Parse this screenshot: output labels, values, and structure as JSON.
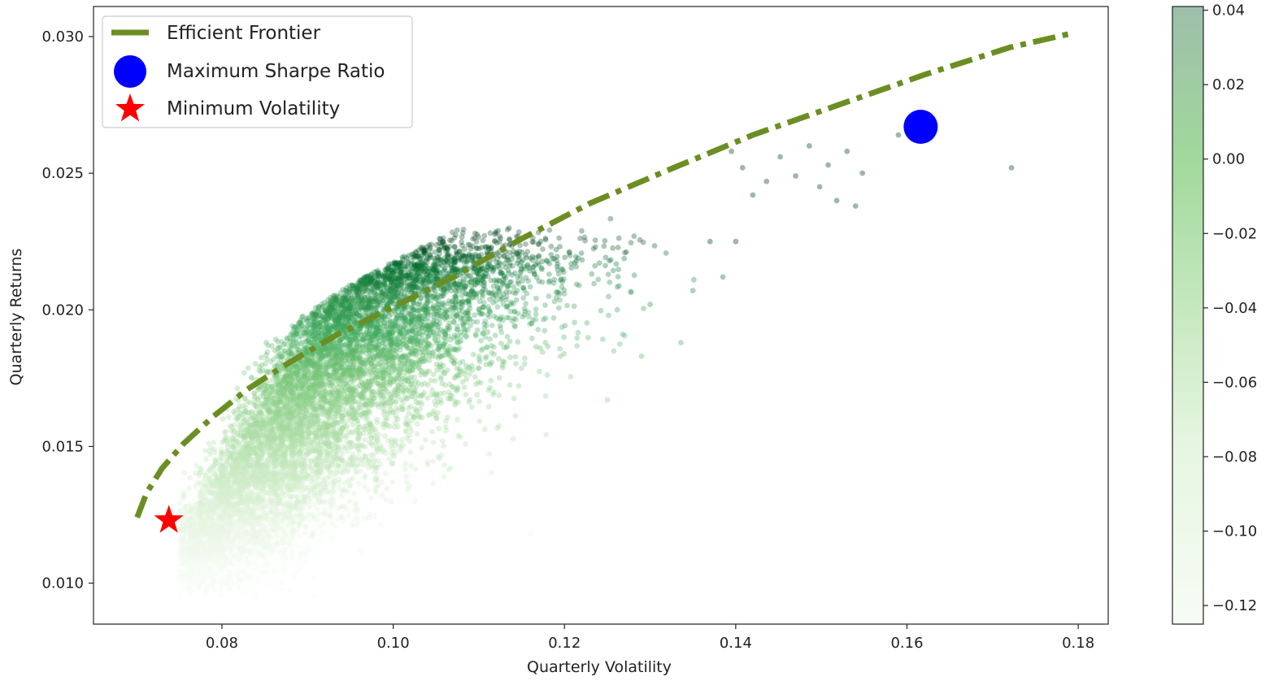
{
  "chart_data": {
    "type": "scatter",
    "title": "",
    "xlabel": "Quarterly Volatility",
    "ylabel": "Quarterly Returns",
    "xlim": [
      0.065,
      0.1835
    ],
    "ylim": [
      0.0085,
      0.0311
    ],
    "x_ticks": [
      0.08,
      0.1,
      0.12,
      0.14,
      0.16,
      0.18
    ],
    "x_tick_labels": [
      "0.08",
      "0.10",
      "0.12",
      "0.14",
      "0.16",
      "0.18"
    ],
    "y_ticks": [
      0.01,
      0.015,
      0.02,
      0.025,
      0.03
    ],
    "y_tick_labels": [
      "0.010",
      "0.015",
      "0.020",
      "0.025",
      "0.030"
    ],
    "grid": false,
    "legend_position": "top-left",
    "colormap": "Greens",
    "colorbar": {
      "min": -0.125,
      "max": 0.041,
      "ticks": [
        0.04,
        0.02,
        0.0,
        -0.02,
        -0.04,
        -0.06,
        -0.08,
        -0.1,
        -0.12
      ],
      "tick_labels": [
        "0.04",
        "0.02",
        "0.00",
        "−0.02",
        "−0.04",
        "−0.06",
        "−0.08",
        "−0.10",
        "−0.12"
      ]
    },
    "cloud": {
      "count": 9000,
      "vol_range": [
        0.075,
        0.172
      ],
      "ret_range": [
        0.0095,
        0.0262
      ]
    },
    "outliers": [
      [
        0.1486,
        0.026
      ],
      [
        0.1508,
        0.0253
      ],
      [
        0.153,
        0.0258
      ],
      [
        0.1548,
        0.025
      ],
      [
        0.154,
        0.0238
      ],
      [
        0.1498,
        0.0245
      ],
      [
        0.1518,
        0.024
      ],
      [
        0.159,
        0.0264
      ],
      [
        0.1722,
        0.0252
      ],
      [
        0.147,
        0.0249
      ],
      [
        0.1452,
        0.0256
      ],
      [
        0.1436,
        0.0247
      ],
      [
        0.1395,
        0.0258
      ],
      [
        0.1408,
        0.0252
      ],
      [
        0.142,
        0.0242
      ],
      [
        0.137,
        0.0225
      ],
      [
        0.1385,
        0.0212
      ],
      [
        0.1336,
        0.0188
      ],
      [
        0.129,
        0.0183
      ],
      [
        0.125,
        0.0167
      ],
      [
        0.116,
        0.0118
      ],
      [
        0.13,
        0.0202
      ],
      [
        0.135,
        0.0207
      ],
      [
        0.14,
        0.0225
      ]
    ],
    "series": [
      {
        "name": "Efficient Frontier",
        "style": "dash-dot",
        "color": "#6b8e23",
        "x": [
          0.0701,
          0.0712,
          0.073,
          0.0755,
          0.079,
          0.083,
          0.088,
          0.0935,
          0.1,
          0.107,
          0.115,
          0.123,
          0.132,
          0.142,
          0.152,
          0.162,
          0.172,
          0.179
        ],
        "y": [
          0.0124,
          0.0133,
          0.0142,
          0.0151,
          0.0161,
          0.0171,
          0.0181,
          0.0191,
          0.0201,
          0.0212,
          0.0226,
          0.0239,
          0.0251,
          0.0264,
          0.0275,
          0.0286,
          0.0296,
          0.0301
        ]
      },
      {
        "name": "Maximum Sharpe Ratio",
        "marker": "circle",
        "color": "#0000ff",
        "x": [
          0.1616
        ],
        "y": [
          0.0267
        ]
      },
      {
        "name": "Minimum Volatility",
        "marker": "star",
        "color": "#ff0000",
        "x": [
          0.0738
        ],
        "y": [
          0.0123
        ]
      }
    ]
  }
}
